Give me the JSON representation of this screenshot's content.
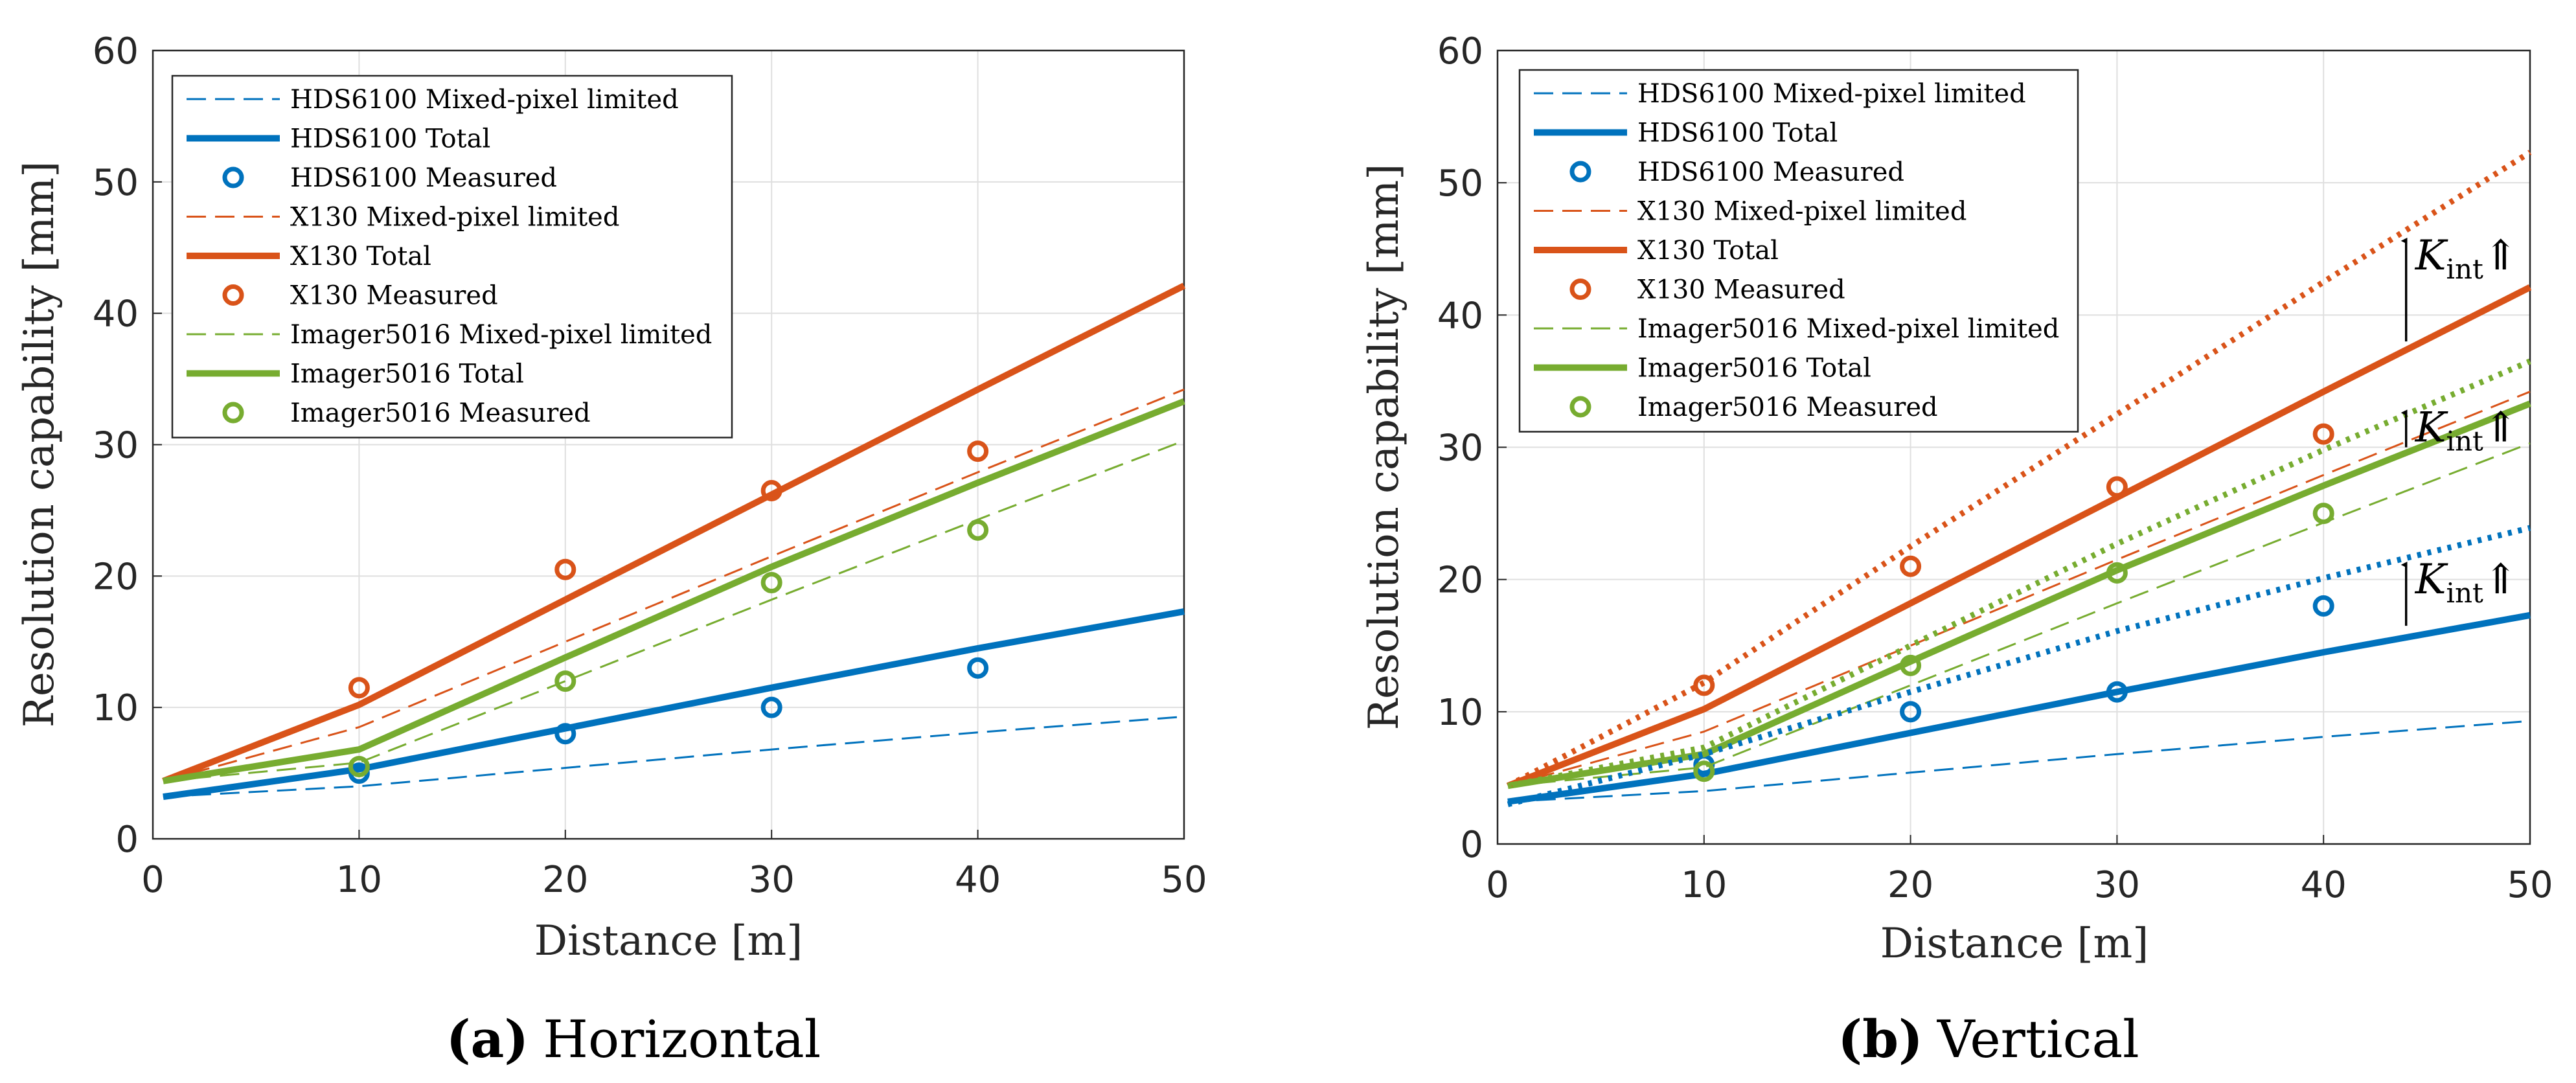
{
  "chart_data": [
    {
      "type": "line",
      "title": "",
      "caption_label": "(a)",
      "caption_text": "Horizontal",
      "xlabel": "Distance [m]",
      "ylabel": "Resolution capability [mm]",
      "xlim": [
        0,
        50
      ],
      "ylim": [
        0,
        60
      ],
      "xticks": [
        "0",
        "10",
        "20",
        "30",
        "40",
        "50"
      ],
      "yticks": [
        "0",
        "10",
        "20",
        "30",
        "40",
        "50",
        "60"
      ],
      "grid": true,
      "legend_position": "top-left",
      "series": [
        {
          "name": "HDS6100 Mixed-pixel limited",
          "style": "dashed",
          "color": "#0072BD",
          "x": [
            0.5,
            10,
            20,
            30,
            40,
            50
          ],
          "y": [
            3.2,
            4.0,
            5.4,
            6.8,
            8.1,
            9.3
          ]
        },
        {
          "name": "HDS6100 Total",
          "style": "solid",
          "color": "#0072BD",
          "x": [
            0.5,
            10,
            20,
            30,
            40,
            50
          ],
          "y": [
            3.2,
            5.3,
            8.4,
            11.5,
            14.5,
            17.3
          ]
        },
        {
          "name": "HDS6100 Measured",
          "style": "marker",
          "color": "#0072BD",
          "x": [
            10,
            20,
            30,
            40
          ],
          "y": [
            5.0,
            8.0,
            10.0,
            13.0
          ]
        },
        {
          "name": "X130 Mixed-pixel limited",
          "style": "dashed",
          "color": "#D95319",
          "x": [
            0.5,
            10,
            20,
            30,
            40,
            50
          ],
          "y": [
            4.4,
            8.5,
            15.0,
            21.5,
            27.9,
            34.2
          ]
        },
        {
          "name": "X130 Total",
          "style": "solid",
          "color": "#D95319",
          "x": [
            0.5,
            10,
            20,
            30,
            40,
            50
          ],
          "y": [
            4.4,
            10.2,
            18.2,
            26.2,
            34.2,
            42.1
          ]
        },
        {
          "name": "X130 Measured",
          "style": "marker",
          "color": "#D95319",
          "x": [
            10,
            20,
            30,
            40
          ],
          "y": [
            11.5,
            20.5,
            26.5,
            29.5
          ]
        },
        {
          "name": "Imager5016 Mixed-pixel limited",
          "style": "dashed",
          "color": "#77AC30",
          "x": [
            0.5,
            10,
            20,
            30,
            40,
            50
          ],
          "y": [
            4.4,
            5.8,
            12.0,
            18.2,
            24.3,
            30.3
          ]
        },
        {
          "name": "Imager5016 Total",
          "style": "solid",
          "color": "#77AC30",
          "x": [
            0.5,
            10,
            20,
            30,
            40,
            50
          ],
          "y": [
            4.4,
            6.8,
            13.8,
            20.7,
            27.1,
            33.3
          ]
        },
        {
          "name": "Imager5016 Measured",
          "style": "marker",
          "color": "#77AC30",
          "x": [
            10,
            20,
            30,
            40
          ],
          "y": [
            5.5,
            12.0,
            19.5,
            23.5
          ]
        }
      ],
      "annotations": []
    },
    {
      "type": "line",
      "title": "",
      "caption_label": "(b)",
      "caption_text": "Vertical",
      "xlabel": "Distance [m]",
      "ylabel": "Resolution capability [mm]",
      "xlim": [
        0,
        50
      ],
      "ylim": [
        0,
        60
      ],
      "xticks": [
        "0",
        "10",
        "20",
        "30",
        "40",
        "50"
      ],
      "yticks": [
        "0",
        "10",
        "20",
        "30",
        "40",
        "50",
        "60"
      ],
      "grid": true,
      "legend_position": "top-left",
      "series": [
        {
          "name": "HDS6100 Mixed-pixel limited",
          "style": "dashed",
          "color": "#0072BD",
          "x": [
            0.5,
            10,
            20,
            30,
            40,
            50
          ],
          "y": [
            3.2,
            4.0,
            5.4,
            6.8,
            8.1,
            9.3
          ]
        },
        {
          "name": "HDS6100 Total",
          "style": "solid",
          "color": "#0072BD",
          "x": [
            0.5,
            10,
            20,
            30,
            40,
            50
          ],
          "y": [
            3.2,
            5.3,
            8.4,
            11.5,
            14.5,
            17.3
          ]
        },
        {
          "name": "HDS6100 Measured",
          "style": "marker",
          "color": "#0072BD",
          "x": [
            10,
            20,
            30,
            40
          ],
          "y": [
            6.0,
            10.0,
            11.5,
            18.0
          ]
        },
        {
          "name": "X130 Mixed-pixel limited",
          "style": "dashed",
          "color": "#D95319",
          "x": [
            0.5,
            10,
            20,
            30,
            40,
            50
          ],
          "y": [
            4.4,
            8.5,
            15.0,
            21.5,
            27.9,
            34.2
          ]
        },
        {
          "name": "X130 Total",
          "style": "solid",
          "color": "#D95319",
          "x": [
            0.5,
            10,
            20,
            30,
            40,
            50
          ],
          "y": [
            4.4,
            10.2,
            18.2,
            26.2,
            34.2,
            42.1
          ]
        },
        {
          "name": "X130 Measured",
          "style": "marker",
          "color": "#D95319",
          "x": [
            10,
            20,
            30,
            40
          ],
          "y": [
            12.0,
            21.0,
            27.0,
            31.0
          ]
        },
        {
          "name": "Imager5016 Mixed-pixel limited",
          "style": "dashed",
          "color": "#77AC30",
          "x": [
            0.5,
            10,
            20,
            30,
            40,
            50
          ],
          "y": [
            4.4,
            5.8,
            12.0,
            18.2,
            24.3,
            30.3
          ]
        },
        {
          "name": "Imager5016 Total",
          "style": "solid",
          "color": "#77AC30",
          "x": [
            0.5,
            10,
            20,
            30,
            40,
            50
          ],
          "y": [
            4.4,
            6.8,
            13.8,
            20.7,
            27.1,
            33.3
          ]
        },
        {
          "name": "Imager5016 Measured",
          "style": "marker",
          "color": "#77AC30",
          "x": [
            10,
            20,
            30,
            40
          ],
          "y": [
            5.5,
            13.5,
            20.5,
            25.0
          ]
        },
        {
          "name": "X130 increased K_int",
          "style": "dotted",
          "color": "#D95319",
          "in_legend": false,
          "x": [
            0.5,
            10,
            20,
            30,
            40,
            50
          ],
          "y": [
            4.4,
            12.2,
            22.5,
            32.5,
            42.5,
            52.3
          ]
        },
        {
          "name": "Imager5016 increased K_int",
          "style": "dotted",
          "color": "#77AC30",
          "in_legend": false,
          "x": [
            0.5,
            10,
            20,
            30,
            40,
            50
          ],
          "y": [
            4.4,
            7.3,
            15.0,
            22.7,
            29.8,
            36.5
          ]
        },
        {
          "name": "HDS6100 increased K_int",
          "style": "dotted",
          "color": "#0072BD",
          "in_legend": false,
          "x": [
            0.5,
            10,
            20,
            30,
            40,
            50
          ],
          "y": [
            3.0,
            6.8,
            11.5,
            16.1,
            20.1,
            23.9
          ]
        }
      ],
      "annotations": [
        {
          "base": "K",
          "sub": "int",
          "symbol": "⇑",
          "x": 44,
          "y_from": 38,
          "y_to": 46
        },
        {
          "base": "K",
          "sub": "int",
          "symbol": "⇑",
          "x": 44,
          "y_from": 30,
          "y_to": 33
        },
        {
          "base": "K",
          "sub": "int",
          "symbol": "⇑",
          "x": 44,
          "y_from": 16.5,
          "y_to": 21.5
        }
      ]
    }
  ]
}
